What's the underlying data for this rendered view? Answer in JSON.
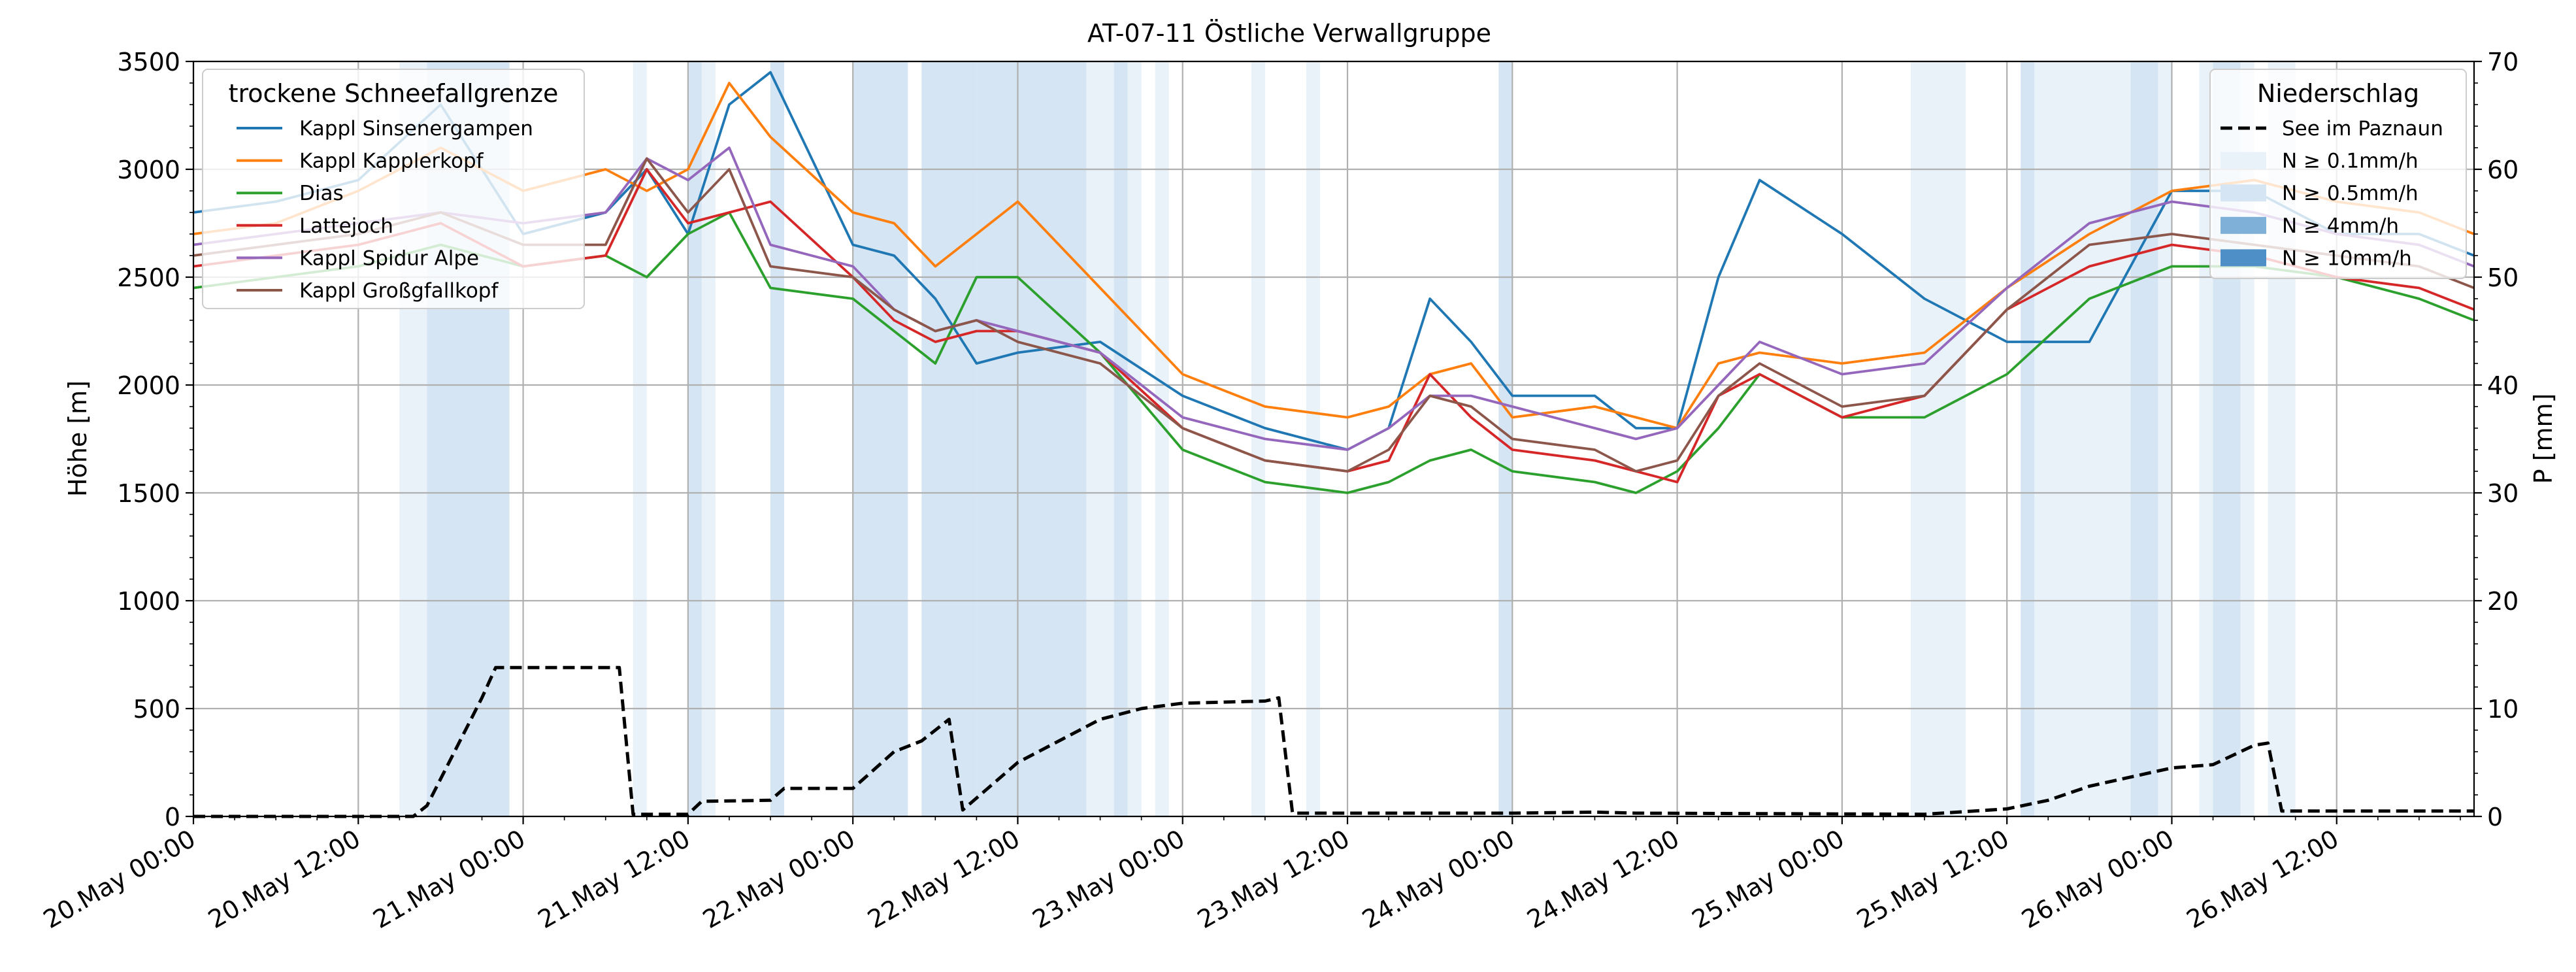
{
  "chart_data": {
    "type": "line",
    "title": "AT-07-11 Östliche Verwallgruppe",
    "ylabel_left": "Höhe [m]",
    "ylabel_right": "P [mm]",
    "xlabel": "",
    "x_start": "2024-05-20T00:00",
    "x_end": "2024-05-26T22:00",
    "x_ticks": [
      "20.May 00:00",
      "20.May 12:00",
      "21.May 00:00",
      "21.May 12:00",
      "22.May 00:00",
      "22.May 12:00",
      "23.May 00:00",
      "23.May 12:00",
      "24.May 00:00",
      "24.May 12:00",
      "25.May 00:00",
      "25.May 12:00",
      "26.May 00:00",
      "26.May 12:00"
    ],
    "ylim_left": [
      0,
      3500
    ],
    "yticks_left": [
      0,
      500,
      1000,
      1500,
      2000,
      2500,
      3000,
      3500
    ],
    "ylim_right": [
      0,
      70
    ],
    "yticks_right": [
      0,
      10,
      20,
      30,
      40,
      50,
      60,
      70
    ],
    "grid": true,
    "legend_left": {
      "title": "trockene Schneefallgrenze",
      "placement": "top-left",
      "entries": [
        "Kappl Sinsenergampen",
        "Kappl Kapplerkopf",
        "Dias",
        "Lattejoch",
        "Kappl Spidur Alpe",
        "Kappl Großgfallkopf"
      ]
    },
    "legend_right": {
      "title": "Niederschlag",
      "placement": "top-right",
      "entries": [
        "See im Paznaun",
        "N ≥ 0.1mm/h",
        "N ≥ 0.5mm/h",
        "N ≥ 4mm/h",
        "N ≥ 10mm/h"
      ]
    },
    "series": [
      {
        "name": "Kappl Sinsenergampen",
        "color": "#1f77b4",
        "axis": "left",
        "x": [
          "2024-05-20T00:00",
          "2024-05-20T06:00",
          "2024-05-20T12:00",
          "2024-05-20T18:00",
          "2024-05-21T00:00",
          "2024-05-21T06:00",
          "2024-05-21T09:00",
          "2024-05-21T12:00",
          "2024-05-21T15:00",
          "2024-05-21T18:00",
          "2024-05-22T00:00",
          "2024-05-22T03:00",
          "2024-05-22T06:00",
          "2024-05-22T09:00",
          "2024-05-22T12:00",
          "2024-05-22T18:00",
          "2024-05-23T00:00",
          "2024-05-23T06:00",
          "2024-05-23T12:00",
          "2024-05-23T15:00",
          "2024-05-23T18:00",
          "2024-05-23T21:00",
          "2024-05-24T00:00",
          "2024-05-24T06:00",
          "2024-05-24T09:00",
          "2024-05-24T12:00",
          "2024-05-24T15:00",
          "2024-05-24T18:00",
          "2024-05-25T00:00",
          "2024-05-25T06:00",
          "2024-05-25T12:00",
          "2024-05-25T18:00",
          "2024-05-26T00:00",
          "2024-05-26T06:00",
          "2024-05-26T12:00",
          "2024-05-26T18:00",
          "2024-05-26T22:00"
        ],
        "y": [
          2800,
          2850,
          2950,
          3300,
          2700,
          2800,
          3000,
          2700,
          3300,
          3450,
          2650,
          2600,
          2400,
          2100,
          2150,
          2200,
          1950,
          1800,
          1700,
          1800,
          2400,
          2200,
          1950,
          1950,
          1800,
          1800,
          2500,
          2950,
          2700,
          2400,
          2200,
          2200,
          2900,
          2900,
          2700,
          2700,
          2600
        ]
      },
      {
        "name": "Kappl Kapplerkopf",
        "color": "#ff7f0e",
        "axis": "left",
        "x": [
          "2024-05-20T00:00",
          "2024-05-20T06:00",
          "2024-05-20T12:00",
          "2024-05-20T18:00",
          "2024-05-21T00:00",
          "2024-05-21T06:00",
          "2024-05-21T09:00",
          "2024-05-21T12:00",
          "2024-05-21T15:00",
          "2024-05-21T18:00",
          "2024-05-22T00:00",
          "2024-05-22T03:00",
          "2024-05-22T06:00",
          "2024-05-22T09:00",
          "2024-05-22T12:00",
          "2024-05-22T18:00",
          "2024-05-23T00:00",
          "2024-05-23T06:00",
          "2024-05-23T12:00",
          "2024-05-23T15:00",
          "2024-05-23T18:00",
          "2024-05-23T21:00",
          "2024-05-24T00:00",
          "2024-05-24T06:00",
          "2024-05-24T09:00",
          "2024-05-24T12:00",
          "2024-05-24T15:00",
          "2024-05-24T18:00",
          "2024-05-25T00:00",
          "2024-05-25T06:00",
          "2024-05-25T12:00",
          "2024-05-25T18:00",
          "2024-05-26T00:00",
          "2024-05-26T06:00",
          "2024-05-26T12:00",
          "2024-05-26T18:00",
          "2024-05-26T22:00"
        ],
        "y": [
          2700,
          2750,
          2900,
          3100,
          2900,
          3000,
          2900,
          3000,
          3400,
          3150,
          2800,
          2750,
          2550,
          2700,
          2850,
          2450,
          2050,
          1900,
          1850,
          1900,
          2050,
          2100,
          1850,
          1900,
          1850,
          1800,
          2100,
          2150,
          2100,
          2150,
          2450,
          2700,
          2900,
          2950,
          2850,
          2800,
          2700
        ]
      },
      {
        "name": "Dias",
        "color": "#2ca02c",
        "axis": "left",
        "x": [
          "2024-05-20T00:00",
          "2024-05-20T06:00",
          "2024-05-20T12:00",
          "2024-05-20T18:00",
          "2024-05-21T00:00",
          "2024-05-21T06:00",
          "2024-05-21T09:00",
          "2024-05-21T12:00",
          "2024-05-21T15:00",
          "2024-05-21T18:00",
          "2024-05-22T00:00",
          "2024-05-22T03:00",
          "2024-05-22T06:00",
          "2024-05-22T09:00",
          "2024-05-22T12:00",
          "2024-05-22T18:00",
          "2024-05-23T00:00",
          "2024-05-23T06:00",
          "2024-05-23T12:00",
          "2024-05-23T15:00",
          "2024-05-23T18:00",
          "2024-05-23T21:00",
          "2024-05-24T00:00",
          "2024-05-24T06:00",
          "2024-05-24T09:00",
          "2024-05-24T12:00",
          "2024-05-24T15:00",
          "2024-05-24T18:00",
          "2024-05-25T00:00",
          "2024-05-25T06:00",
          "2024-05-25T12:00",
          "2024-05-25T18:00",
          "2024-05-26T00:00",
          "2024-05-26T06:00",
          "2024-05-26T12:00",
          "2024-05-26T18:00",
          "2024-05-26T22:00"
        ],
        "y": [
          2450,
          2500,
          2550,
          2650,
          2550,
          2600,
          2500,
          2700,
          2800,
          2450,
          2400,
          2250,
          2100,
          2500,
          2500,
          2150,
          1700,
          1550,
          1500,
          1550,
          1650,
          1700,
          1600,
          1550,
          1500,
          1600,
          1800,
          2050,
          1850,
          1850,
          2050,
          2400,
          2550,
          2550,
          2500,
          2400,
          2300
        ]
      },
      {
        "name": "Lattejoch",
        "color": "#d62728",
        "axis": "left",
        "x": [
          "2024-05-20T00:00",
          "2024-05-20T06:00",
          "2024-05-20T12:00",
          "2024-05-20T18:00",
          "2024-05-21T00:00",
          "2024-05-21T06:00",
          "2024-05-21T09:00",
          "2024-05-21T12:00",
          "2024-05-21T15:00",
          "2024-05-21T18:00",
          "2024-05-22T00:00",
          "2024-05-22T03:00",
          "2024-05-22T06:00",
          "2024-05-22T09:00",
          "2024-05-22T12:00",
          "2024-05-22T18:00",
          "2024-05-23T00:00",
          "2024-05-23T06:00",
          "2024-05-23T12:00",
          "2024-05-23T15:00",
          "2024-05-23T18:00",
          "2024-05-23T21:00",
          "2024-05-24T00:00",
          "2024-05-24T06:00",
          "2024-05-24T09:00",
          "2024-05-24T12:00",
          "2024-05-24T15:00",
          "2024-05-24T18:00",
          "2024-05-25T00:00",
          "2024-05-25T06:00",
          "2024-05-25T12:00",
          "2024-05-25T18:00",
          "2024-05-26T00:00",
          "2024-05-26T06:00",
          "2024-05-26T12:00",
          "2024-05-26T18:00",
          "2024-05-26T22:00"
        ],
        "y": [
          2550,
          2600,
          2650,
          2750,
          2550,
          2600,
          3000,
          2750,
          2800,
          2850,
          2500,
          2300,
          2200,
          2250,
          2250,
          2150,
          1800,
          1650,
          1600,
          1650,
          2050,
          1850,
          1700,
          1650,
          1600,
          1550,
          1950,
          2050,
          1850,
          1950,
          2350,
          2550,
          2650,
          2600,
          2500,
          2450,
          2350
        ]
      },
      {
        "name": "Kappl Spidur Alpe",
        "color": "#9467bd",
        "axis": "left",
        "x": [
          "2024-05-20T00:00",
          "2024-05-20T06:00",
          "2024-05-20T12:00",
          "2024-05-20T18:00",
          "2024-05-21T00:00",
          "2024-05-21T06:00",
          "2024-05-21T09:00",
          "2024-05-21T12:00",
          "2024-05-21T15:00",
          "2024-05-21T18:00",
          "2024-05-22T00:00",
          "2024-05-22T03:00",
          "2024-05-22T06:00",
          "2024-05-22T09:00",
          "2024-05-22T12:00",
          "2024-05-22T18:00",
          "2024-05-23T00:00",
          "2024-05-23T06:00",
          "2024-05-23T12:00",
          "2024-05-23T15:00",
          "2024-05-23T18:00",
          "2024-05-23T21:00",
          "2024-05-24T00:00",
          "2024-05-24T06:00",
          "2024-05-24T09:00",
          "2024-05-24T12:00",
          "2024-05-24T15:00",
          "2024-05-24T18:00",
          "2024-05-25T00:00",
          "2024-05-25T06:00",
          "2024-05-25T12:00",
          "2024-05-25T18:00",
          "2024-05-26T00:00",
          "2024-05-26T06:00",
          "2024-05-26T12:00",
          "2024-05-26T18:00",
          "2024-05-26T22:00"
        ],
        "y": [
          2650,
          2700,
          2750,
          2800,
          2750,
          2800,
          3050,
          2950,
          3100,
          2650,
          2550,
          2350,
          2250,
          2300,
          2250,
          2150,
          1850,
          1750,
          1700,
          1800,
          1950,
          1950,
          1900,
          1800,
          1750,
          1800,
          2000,
          2200,
          2050,
          2100,
          2450,
          2750,
          2850,
          2800,
          2700,
          2650,
          2550
        ]
      },
      {
        "name": "Kappl Großgfallkopf",
        "color": "#8c564b",
        "axis": "left",
        "x": [
          "2024-05-20T00:00",
          "2024-05-20T06:00",
          "2024-05-20T12:00",
          "2024-05-20T18:00",
          "2024-05-21T00:00",
          "2024-05-21T06:00",
          "2024-05-21T09:00",
          "2024-05-21T12:00",
          "2024-05-21T15:00",
          "2024-05-21T18:00",
          "2024-05-22T00:00",
          "2024-05-22T03:00",
          "2024-05-22T06:00",
          "2024-05-22T09:00",
          "2024-05-22T12:00",
          "2024-05-22T18:00",
          "2024-05-23T00:00",
          "2024-05-23T06:00",
          "2024-05-23T12:00",
          "2024-05-23T15:00",
          "2024-05-23T18:00",
          "2024-05-23T21:00",
          "2024-05-24T00:00",
          "2024-05-24T06:00",
          "2024-05-24T09:00",
          "2024-05-24T12:00",
          "2024-05-24T15:00",
          "2024-05-24T18:00",
          "2024-05-25T00:00",
          "2024-05-25T06:00",
          "2024-05-25T12:00",
          "2024-05-25T18:00",
          "2024-05-26T00:00",
          "2024-05-26T06:00",
          "2024-05-26T12:00",
          "2024-05-26T18:00",
          "2024-05-26T22:00"
        ],
        "y": [
          2600,
          2650,
          2700,
          2800,
          2650,
          2650,
          3050,
          2800,
          3000,
          2550,
          2500,
          2350,
          2250,
          2300,
          2200,
          2100,
          1800,
          1650,
          1600,
          1700,
          1950,
          1900,
          1750,
          1700,
          1600,
          1650,
          1950,
          2100,
          1900,
          1950,
          2350,
          2650,
          2700,
          2650,
          2600,
          2550,
          2450
        ]
      },
      {
        "name": "See im Paznaun",
        "color": "#000000",
        "axis": "right",
        "dashed": true,
        "x": [
          "2024-05-20T00:00",
          "2024-05-20T16:00",
          "2024-05-20T17:00",
          "2024-05-20T19:00",
          "2024-05-20T21:00",
          "2024-05-20T22:00",
          "2024-05-21T00:00",
          "2024-05-21T07:00",
          "2024-05-21T08:00",
          "2024-05-21T12:00",
          "2024-05-21T13:00",
          "2024-05-21T18:00",
          "2024-05-21T19:00",
          "2024-05-22T00:00",
          "2024-05-22T03:00",
          "2024-05-22T05:00",
          "2024-05-22T07:00",
          "2024-05-22T08:00",
          "2024-05-22T12:00",
          "2024-05-22T15:00",
          "2024-05-22T18:00",
          "2024-05-22T21:00",
          "2024-05-23T00:00",
          "2024-05-23T06:00",
          "2024-05-23T07:00",
          "2024-05-23T08:00",
          "2024-05-23T12:00",
          "2024-05-24T00:00",
          "2024-05-24T06:00",
          "2024-05-24T09:00",
          "2024-05-25T06:00",
          "2024-05-25T12:00",
          "2024-05-25T15:00",
          "2024-05-25T18:00",
          "2024-05-26T00:00",
          "2024-05-26T03:00",
          "2024-05-26T06:00",
          "2024-05-26T07:00",
          "2024-05-26T08:00",
          "2024-05-26T22:00"
        ],
        "y": [
          0,
          0,
          1,
          6,
          11,
          13.8,
          13.8,
          13.8,
          0.2,
          0.2,
          1.4,
          1.5,
          2.6,
          2.6,
          6,
          7,
          9,
          0.6,
          5,
          7,
          9,
          10,
          10.5,
          10.7,
          11,
          0.3,
          0.3,
          0.3,
          0.4,
          0.3,
          0.2,
          0.7,
          1.5,
          2.8,
          4.5,
          4.8,
          6.6,
          6.8,
          0.5,
          0.5
        ]
      }
    ],
    "precip_bands": [
      {
        "start": "2024-05-20T15:00",
        "end": "2024-05-20T17:00",
        "level": "N ≥ 0.1mm/h"
      },
      {
        "start": "2024-05-20T17:00",
        "end": "2024-05-20T23:00",
        "level": "N ≥ 0.5mm/h"
      },
      {
        "start": "2024-05-21T08:00",
        "end": "2024-05-21T09:00",
        "level": "N ≥ 0.1mm/h"
      },
      {
        "start": "2024-05-21T12:00",
        "end": "2024-05-21T13:00",
        "level": "N ≥ 0.5mm/h"
      },
      {
        "start": "2024-05-21T13:00",
        "end": "2024-05-21T14:00",
        "level": "N ≥ 0.1mm/h"
      },
      {
        "start": "2024-05-21T18:00",
        "end": "2024-05-21T19:00",
        "level": "N ≥ 0.5mm/h"
      },
      {
        "start": "2024-05-22T00:00",
        "end": "2024-05-22T04:00",
        "level": "N ≥ 0.5mm/h"
      },
      {
        "start": "2024-05-22T05:00",
        "end": "2024-05-22T09:00",
        "level": "N ≥ 0.5mm/h"
      },
      {
        "start": "2024-05-22T09:00",
        "end": "2024-05-22T14:00",
        "level": "N ≥ 0.5mm/h"
      },
      {
        "start": "2024-05-22T14:00",
        "end": "2024-05-22T17:00",
        "level": "N ≥ 0.5mm/h"
      },
      {
        "start": "2024-05-22T17:00",
        "end": "2024-05-22T19:00",
        "level": "N ≥ 0.1mm/h"
      },
      {
        "start": "2024-05-22T19:00",
        "end": "2024-05-22T20:00",
        "level": "N ≥ 0.5mm/h"
      },
      {
        "start": "2024-05-22T20:00",
        "end": "2024-05-22T21:00",
        "level": "N ≥ 0.1mm/h"
      },
      {
        "start": "2024-05-22T22:00",
        "end": "2024-05-22T23:00",
        "level": "N ≥ 0.1mm/h"
      },
      {
        "start": "2024-05-23T05:00",
        "end": "2024-05-23T06:00",
        "level": "N ≥ 0.1mm/h"
      },
      {
        "start": "2024-05-23T09:00",
        "end": "2024-05-23T10:00",
        "level": "N ≥ 0.1mm/h"
      },
      {
        "start": "2024-05-23T23:00",
        "end": "2024-05-24T00:00",
        "level": "N ≥ 0.5mm/h"
      },
      {
        "start": "2024-05-25T05:00",
        "end": "2024-05-25T09:00",
        "level": "N ≥ 0.1mm/h"
      },
      {
        "start": "2024-05-25T13:00",
        "end": "2024-05-25T14:00",
        "level": "N ≥ 0.5mm/h"
      },
      {
        "start": "2024-05-25T14:00",
        "end": "2024-05-25T21:00",
        "level": "N ≥ 0.1mm/h"
      },
      {
        "start": "2024-05-25T21:00",
        "end": "2024-05-25T23:00",
        "level": "N ≥ 0.5mm/h"
      },
      {
        "start": "2024-05-25T23:00",
        "end": "2024-05-26T00:00",
        "level": "N ≥ 0.1mm/h"
      },
      {
        "start": "2024-05-26T02:00",
        "end": "2024-05-26T03:00",
        "level": "N ≥ 0.1mm/h"
      },
      {
        "start": "2024-05-26T03:00",
        "end": "2024-05-26T05:00",
        "level": "N ≥ 0.5mm/h"
      },
      {
        "start": "2024-05-26T05:00",
        "end": "2024-05-26T06:00",
        "level": "N ≥ 0.1mm/h"
      },
      {
        "start": "2024-05-26T07:00",
        "end": "2024-05-26T09:00",
        "level": "N ≥ 0.1mm/h"
      }
    ],
    "precip_colors": {
      "N ≥ 0.1mm/h": "#e9f1f9",
      "N ≥ 0.5mm/h": "#d5e5f3",
      "N ≥ 4mm/h": "#7eb0d8",
      "N ≥ 10mm/h": "#4d8fc6"
    }
  }
}
